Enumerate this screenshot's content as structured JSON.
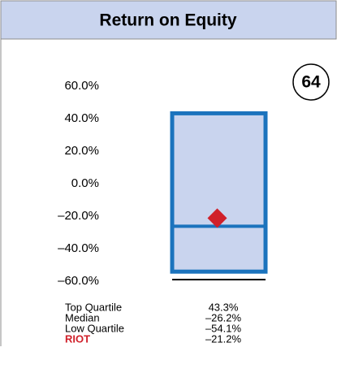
{
  "chart_data": {
    "type": "box",
    "title": "Return on Equity",
    "badge": 64,
    "ylim": [
      -60,
      60
    ],
    "yticks": [
      {
        "value": 60,
        "label": "60.0%"
      },
      {
        "value": 40,
        "label": "40.0%"
      },
      {
        "value": 20,
        "label": "20.0%"
      },
      {
        "value": 0,
        "label": "0.0%"
      },
      {
        "value": -20,
        "label": "–20.0%"
      },
      {
        "value": -40,
        "label": "–40.0%"
      },
      {
        "value": -60,
        "label": "–60.0%"
      }
    ],
    "box_color": "#1b73bd",
    "box_fill": "#c9d4ee",
    "stats": {
      "names": [
        "Top Quartile",
        "Median",
        "Low Quartile"
      ],
      "values": [
        43.3,
        -26.2,
        -54.1
      ],
      "value_labels": [
        "43.3%",
        "–26.2%",
        "–54.1%"
      ]
    },
    "marker": {
      "name": "RIOT",
      "value": -21.2,
      "value_label": "–21.2%",
      "color": "#d0202a"
    }
  }
}
